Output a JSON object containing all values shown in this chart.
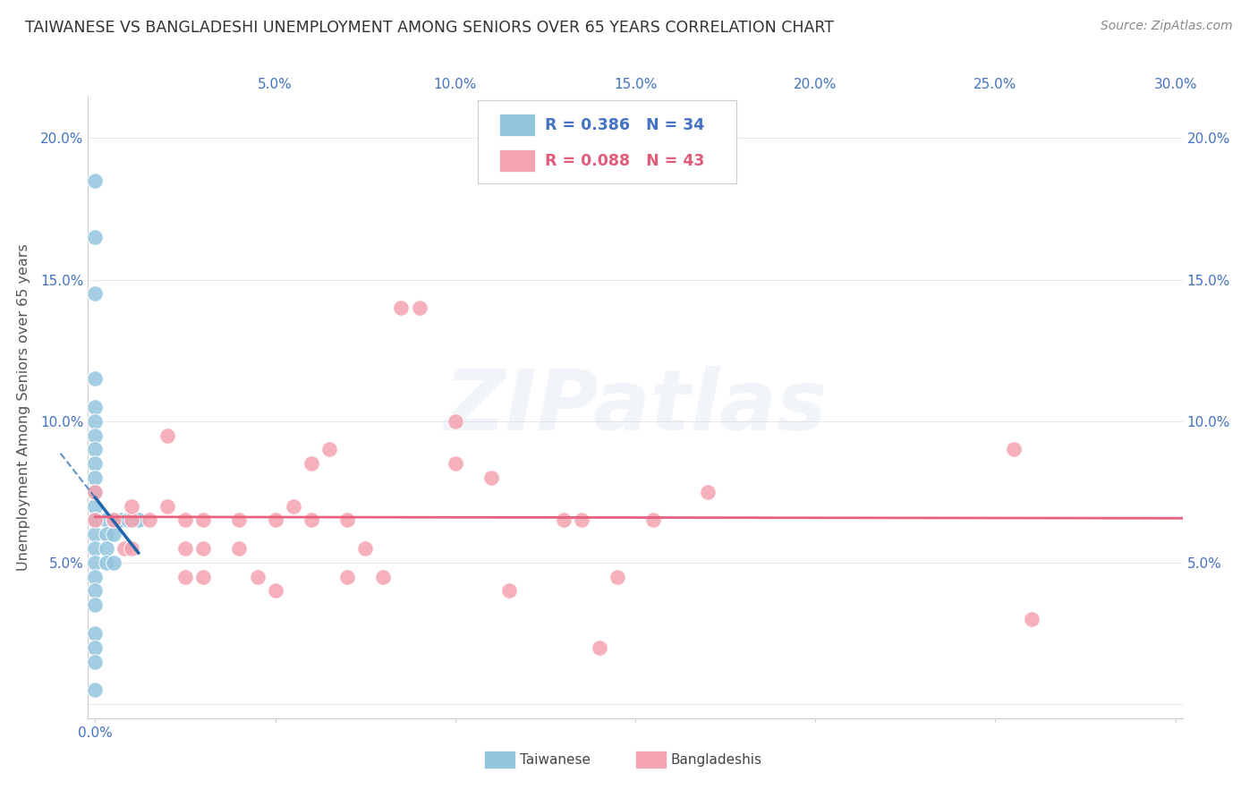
{
  "title": "TAIWANESE VS BANGLADESHI UNEMPLOYMENT AMONG SENIORS OVER 65 YEARS CORRELATION CHART",
  "source": "Source: ZipAtlas.com",
  "ylabel": "Unemployment Among Seniors over 65 years",
  "xlim": [
    -0.002,
    0.302
  ],
  "ylim": [
    -0.005,
    0.215
  ],
  "xticks": [
    0.0,
    0.05,
    0.1,
    0.15,
    0.2,
    0.25,
    0.3
  ],
  "yticks": [
    0.0,
    0.05,
    0.1,
    0.15,
    0.2
  ],
  "ytick_labels": [
    "",
    "5.0%",
    "10.0%",
    "15.0%",
    "20.0%"
  ],
  "xtick_labels": [
    "0.0%",
    "",
    "",
    "",
    "",
    "",
    ""
  ],
  "xtick_labels_right": [
    "",
    "5.0%",
    "10.0%",
    "15.0%",
    "20.0%",
    "25.0%",
    "30.0%"
  ],
  "taiwanese_color": "#92c5de",
  "bangladeshi_color": "#f4a3b0",
  "taiwanese_line_color": "#2166ac",
  "bangladeshi_line_color": "#e8607a",
  "legend_taiwanese_label": "Taiwanese",
  "legend_bangladeshi_label": "Bangladeshis",
  "r_taiwanese": 0.386,
  "n_taiwanese": 34,
  "r_bangladeshi": 0.088,
  "n_bangladeshi": 43,
  "watermark": "ZIPatlas",
  "taiwanese_x": [
    0.0,
    0.0,
    0.0,
    0.0,
    0.0,
    0.0,
    0.0,
    0.0,
    0.0,
    0.0,
    0.0,
    0.0,
    0.0,
    0.0,
    0.0,
    0.0,
    0.0,
    0.0,
    0.0,
    0.0,
    0.0,
    0.0,
    0.0,
    0.0,
    0.003,
    0.003,
    0.003,
    0.003,
    0.005,
    0.005,
    0.005,
    0.007,
    0.009,
    0.012
  ],
  "taiwanese_y": [
    0.185,
    0.165,
    0.145,
    0.115,
    0.105,
    0.1,
    0.095,
    0.09,
    0.085,
    0.08,
    0.075,
    0.07,
    0.065,
    0.065,
    0.06,
    0.055,
    0.05,
    0.045,
    0.04,
    0.035,
    0.025,
    0.02,
    0.015,
    0.005,
    0.065,
    0.06,
    0.055,
    0.05,
    0.065,
    0.06,
    0.05,
    0.065,
    0.065,
    0.065
  ],
  "bangladeshi_x": [
    0.0,
    0.0,
    0.005,
    0.008,
    0.01,
    0.01,
    0.01,
    0.015,
    0.02,
    0.02,
    0.025,
    0.025,
    0.025,
    0.03,
    0.03,
    0.03,
    0.04,
    0.04,
    0.045,
    0.05,
    0.05,
    0.055,
    0.06,
    0.06,
    0.065,
    0.07,
    0.07,
    0.075,
    0.08,
    0.085,
    0.09,
    0.1,
    0.1,
    0.11,
    0.115,
    0.13,
    0.135,
    0.14,
    0.145,
    0.155,
    0.17,
    0.255,
    0.26
  ],
  "bangladeshi_y": [
    0.065,
    0.075,
    0.065,
    0.055,
    0.065,
    0.07,
    0.055,
    0.065,
    0.07,
    0.095,
    0.045,
    0.055,
    0.065,
    0.045,
    0.055,
    0.065,
    0.065,
    0.055,
    0.045,
    0.065,
    0.04,
    0.07,
    0.085,
    0.065,
    0.09,
    0.045,
    0.065,
    0.055,
    0.045,
    0.14,
    0.14,
    0.085,
    0.1,
    0.08,
    0.04,
    0.065,
    0.065,
    0.02,
    0.045,
    0.065,
    0.075,
    0.09,
    0.03
  ]
}
